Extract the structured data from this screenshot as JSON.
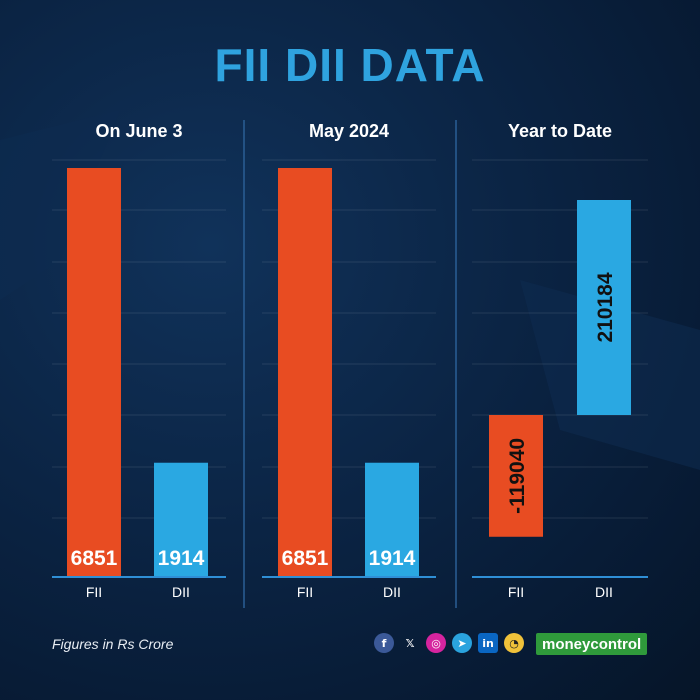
{
  "title": "FII DII DATA",
  "footnote": "Figures in Rs Crore",
  "brand": "moneycontrol",
  "social_icons": [
    "facebook-icon",
    "x-icon",
    "instagram-icon",
    "telegram-icon",
    "linkedin-icon",
    "chat-icon"
  ],
  "colors": {
    "fii": "#e84c22",
    "dii": "#2aa8e2",
    "title": "#2fa3df",
    "background": "#0b2444"
  },
  "chart_data": [
    {
      "type": "bar",
      "title": "On June 3",
      "categories": [
        "FII",
        "DII"
      ],
      "values": [
        6851,
        1914
      ]
    },
    {
      "type": "bar",
      "title": "May 2024",
      "categories": [
        "FII",
        "DII"
      ],
      "values": [
        6851,
        1914
      ]
    },
    {
      "type": "bar",
      "title": "Year to Date",
      "categories": [
        "FII",
        "DII"
      ],
      "values": [
        -119040,
        210184
      ]
    }
  ]
}
